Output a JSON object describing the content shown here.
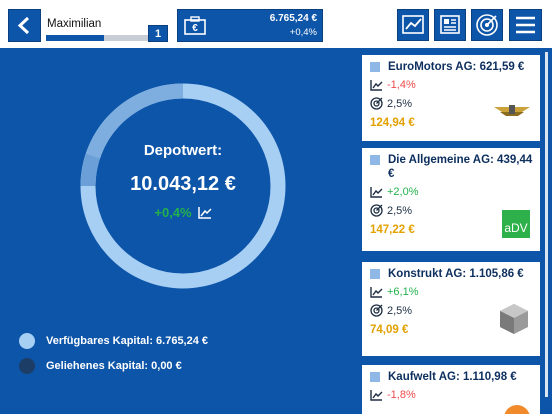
{
  "header": {
    "player_name": "Maximilian",
    "level": "1",
    "cash": "6.765,24 €",
    "cash_change": "+0,4%"
  },
  "depot": {
    "label": "Depotwert:",
    "value": "10.043,12 €",
    "change": "+0,4%"
  },
  "legend": [
    {
      "label": "Verfügbares Kapital: 6.765,24 €"
    },
    {
      "label": "Geliehenes Kapital: 0,00 €"
    }
  ],
  "stocks": [
    {
      "name": "EuroMotors AG: 621,59 €",
      "change": "-1,4%",
      "dividend": "2,5%",
      "price": "124,94 €"
    },
    {
      "name": "Die Allgemeine AG: 439,44 €",
      "change": "+2,0%",
      "dividend": "2,5%",
      "price": "147,22 €",
      "logo_text": "aDV"
    },
    {
      "name": "Konstrukt AG: 1.105,86 €",
      "change": "+6,1%",
      "dividend": "2,5%",
      "price": "74,09 €"
    },
    {
      "name": "Kaufwelt AG: 1.110,98 €",
      "change": "-1,8%"
    }
  ]
}
